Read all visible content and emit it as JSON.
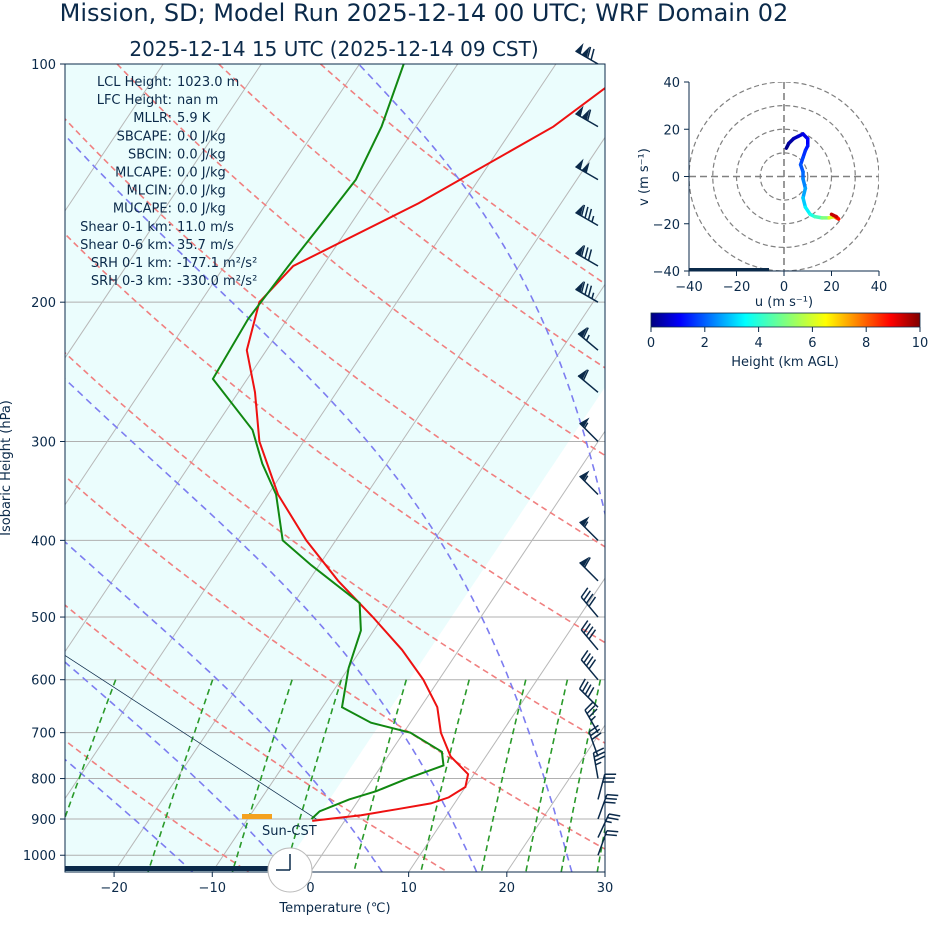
{
  "title": "Mission, SD; Model Run 2025-12-14 00 UTC; WRF Domain 02",
  "subtitle": "2025-12-14 15 UTC  (2025-12-14 09 CST)",
  "stats": [
    {
      "label": "LCL Height:",
      "value": "1023.0 m"
    },
    {
      "label": "LFC Height:",
      "value": "nan m"
    },
    {
      "label": "MLLR:",
      "value": "5.9 K"
    },
    {
      "label": "SBCAPE:",
      "value": "0.0 J/kg"
    },
    {
      "label": "SBCIN:",
      "value": "0.0 J/kg"
    },
    {
      "label": "MLCAPE:",
      "value": "0.0 J/kg"
    },
    {
      "label": "MLCIN:",
      "value": "0.0 J/kg"
    },
    {
      "label": "MUCAPE:",
      "value": "0.0 J/kg"
    },
    {
      "label": "Shear 0-1 km:",
      "value": "11.0 m/s"
    },
    {
      "label": "Shear 0-6 km:",
      "value": "35.7 m/s"
    },
    {
      "label": "SRH 0-1 km:",
      "value": "-177.1 m²/s²"
    },
    {
      "label": "SRH 0-3 km:",
      "value": "-330.0 m²/s²"
    }
  ],
  "sun_label": "Sun-CST",
  "chart_data": [
    {
      "type": "line",
      "chart": "skew-t",
      "xlabel": "Temperature (℃)",
      "ylabel": "Isobaric Height (hPa)",
      "xlim": [
        -25,
        30
      ],
      "ylim": [
        1050,
        100
      ],
      "y_scale": "log",
      "x_ticks": [
        -20,
        -10,
        0,
        10,
        20,
        30
      ],
      "y_ticks": [
        100,
        200,
        300,
        400,
        500,
        600,
        700,
        800,
        900,
        1000
      ],
      "grid": true,
      "series": [
        {
          "role": "temperature",
          "color": "#ee1111",
          "points": [
            [
              100,
              -21.7
            ],
            [
              120,
              -26
            ],
            [
              150,
              -34.5
            ],
            [
              180,
              -43
            ],
            [
              200,
              -44
            ],
            [
              230,
              -42
            ],
            [
              260,
              -38.3
            ],
            [
              300,
              -34.5
            ],
            [
              350,
              -29
            ],
            [
              400,
              -23
            ],
            [
              450,
              -17
            ],
            [
              500,
              -11
            ],
            [
              550,
              -5.8
            ],
            [
              600,
              -1.6
            ],
            [
              650,
              1.7
            ],
            [
              700,
              3.8
            ],
            [
              750,
              6.4
            ],
            [
              790,
              9.4
            ],
            [
              820,
              10.0
            ],
            [
              845,
              9.0
            ],
            [
              860,
              7.6
            ],
            [
              875,
              4.5
            ],
            [
              890,
              1.3
            ],
            [
              900,
              -1.8
            ],
            [
              905,
              -3.3
            ]
          ]
        },
        {
          "role": "dewpoint",
          "color": "#118811",
          "points": [
            [
              100,
              -45.5
            ],
            [
              120,
              -43.5
            ],
            [
              140,
              -42.5
            ],
            [
              160,
              -43
            ],
            [
              180,
              -43.5
            ],
            [
              210,
              -44
            ],
            [
              250,
              -43.5
            ],
            [
              290,
              -36
            ],
            [
              320,
              -32.7
            ],
            [
              350,
              -29.2
            ],
            [
              400,
              -25.4
            ],
            [
              430,
              -20.8
            ],
            [
              480,
              -13.3
            ],
            [
              520,
              -11.3
            ],
            [
              580,
              -10
            ],
            [
              650,
              -8
            ],
            [
              680,
              -4
            ],
            [
              700,
              0.7
            ],
            [
              740,
              5.2
            ],
            [
              770,
              6.3
            ],
            [
              800,
              3.5
            ],
            [
              830,
              1.2
            ],
            [
              850,
              -1.0
            ],
            [
              880,
              -3.2
            ],
            [
              900,
              -3.5
            ]
          ]
        }
      ],
      "wind_barbs": [
        {
          "p": 100,
          "speed_kt": 120,
          "dir": 300
        },
        {
          "p": 120,
          "speed_kt": 110,
          "dir": 300
        },
        {
          "p": 140,
          "speed_kt": 100,
          "dir": 300
        },
        {
          "p": 160,
          "speed_kt": 85,
          "dir": 300
        },
        {
          "p": 180,
          "speed_kt": 80,
          "dir": 300
        },
        {
          "p": 200,
          "speed_kt": 85,
          "dir": 300
        },
        {
          "p": 230,
          "speed_kt": 65,
          "dir": 310
        },
        {
          "p": 260,
          "speed_kt": 60,
          "dir": 310
        },
        {
          "p": 300,
          "speed_kt": 55,
          "dir": 315
        },
        {
          "p": 350,
          "speed_kt": 55,
          "dir": 315
        },
        {
          "p": 400,
          "speed_kt": 55,
          "dir": 315
        },
        {
          "p": 450,
          "speed_kt": 60,
          "dir": 315
        },
        {
          "p": 500,
          "speed_kt": 40,
          "dir": 320
        },
        {
          "p": 550,
          "speed_kt": 40,
          "dir": 320
        },
        {
          "p": 600,
          "speed_kt": 40,
          "dir": 320
        },
        {
          "p": 650,
          "speed_kt": 40,
          "dir": 315
        },
        {
          "p": 700,
          "speed_kt": 35,
          "dir": 330
        },
        {
          "p": 750,
          "speed_kt": 30,
          "dir": 340
        },
        {
          "p": 800,
          "speed_kt": 35,
          "dir": 350
        },
        {
          "p": 850,
          "speed_kt": 30,
          "dir": 15
        },
        {
          "p": 900,
          "speed_kt": 30,
          "dir": 20
        },
        {
          "p": 950,
          "speed_kt": 25,
          "dir": 25
        },
        {
          "p": 1000,
          "speed_kt": 20,
          "dir": 20
        }
      ]
    },
    {
      "type": "line",
      "chart": "hodograph",
      "xlabel": "u (m s⁻¹)",
      "ylabel": "v (m s⁻¹)",
      "xlim": [
        -40,
        40
      ],
      "ylim": [
        -40,
        40
      ],
      "x_ticks": [
        -40,
        -20,
        0,
        20,
        40
      ],
      "y_ticks": [
        -40,
        -20,
        0,
        20,
        40
      ],
      "colorbar": {
        "label": "Height (km AGL)",
        "range": [
          0,
          10
        ],
        "ticks": [
          0,
          2,
          4,
          6,
          8,
          10
        ]
      },
      "points": [
        [
          1,
          12,
          0.0
        ],
        [
          2,
          14,
          0.2
        ],
        [
          4,
          16,
          0.4
        ],
        [
          6,
          17,
          0.6
        ],
        [
          8,
          18,
          0.8
        ],
        [
          10,
          16,
          1.0
        ],
        [
          10,
          13,
          1.2
        ],
        [
          9,
          11,
          1.4
        ],
        [
          8,
          8,
          1.6
        ],
        [
          7,
          5,
          1.8
        ],
        [
          8,
          2,
          2.0
        ],
        [
          8,
          -1,
          2.2
        ],
        [
          9,
          -5,
          2.5
        ],
        [
          8,
          -9,
          2.8
        ],
        [
          9,
          -13,
          3.2
        ],
        [
          11,
          -16,
          3.6
        ],
        [
          13,
          -17,
          4.0
        ],
        [
          16,
          -17.5,
          4.5
        ],
        [
          19,
          -17.5,
          5.5
        ],
        [
          21,
          -17,
          6.5
        ],
        [
          22,
          -17.5,
          7.5
        ],
        [
          23,
          -18,
          8.5
        ],
        [
          22,
          -17,
          9.2
        ],
        [
          20,
          -16,
          9.6
        ]
      ]
    }
  ]
}
